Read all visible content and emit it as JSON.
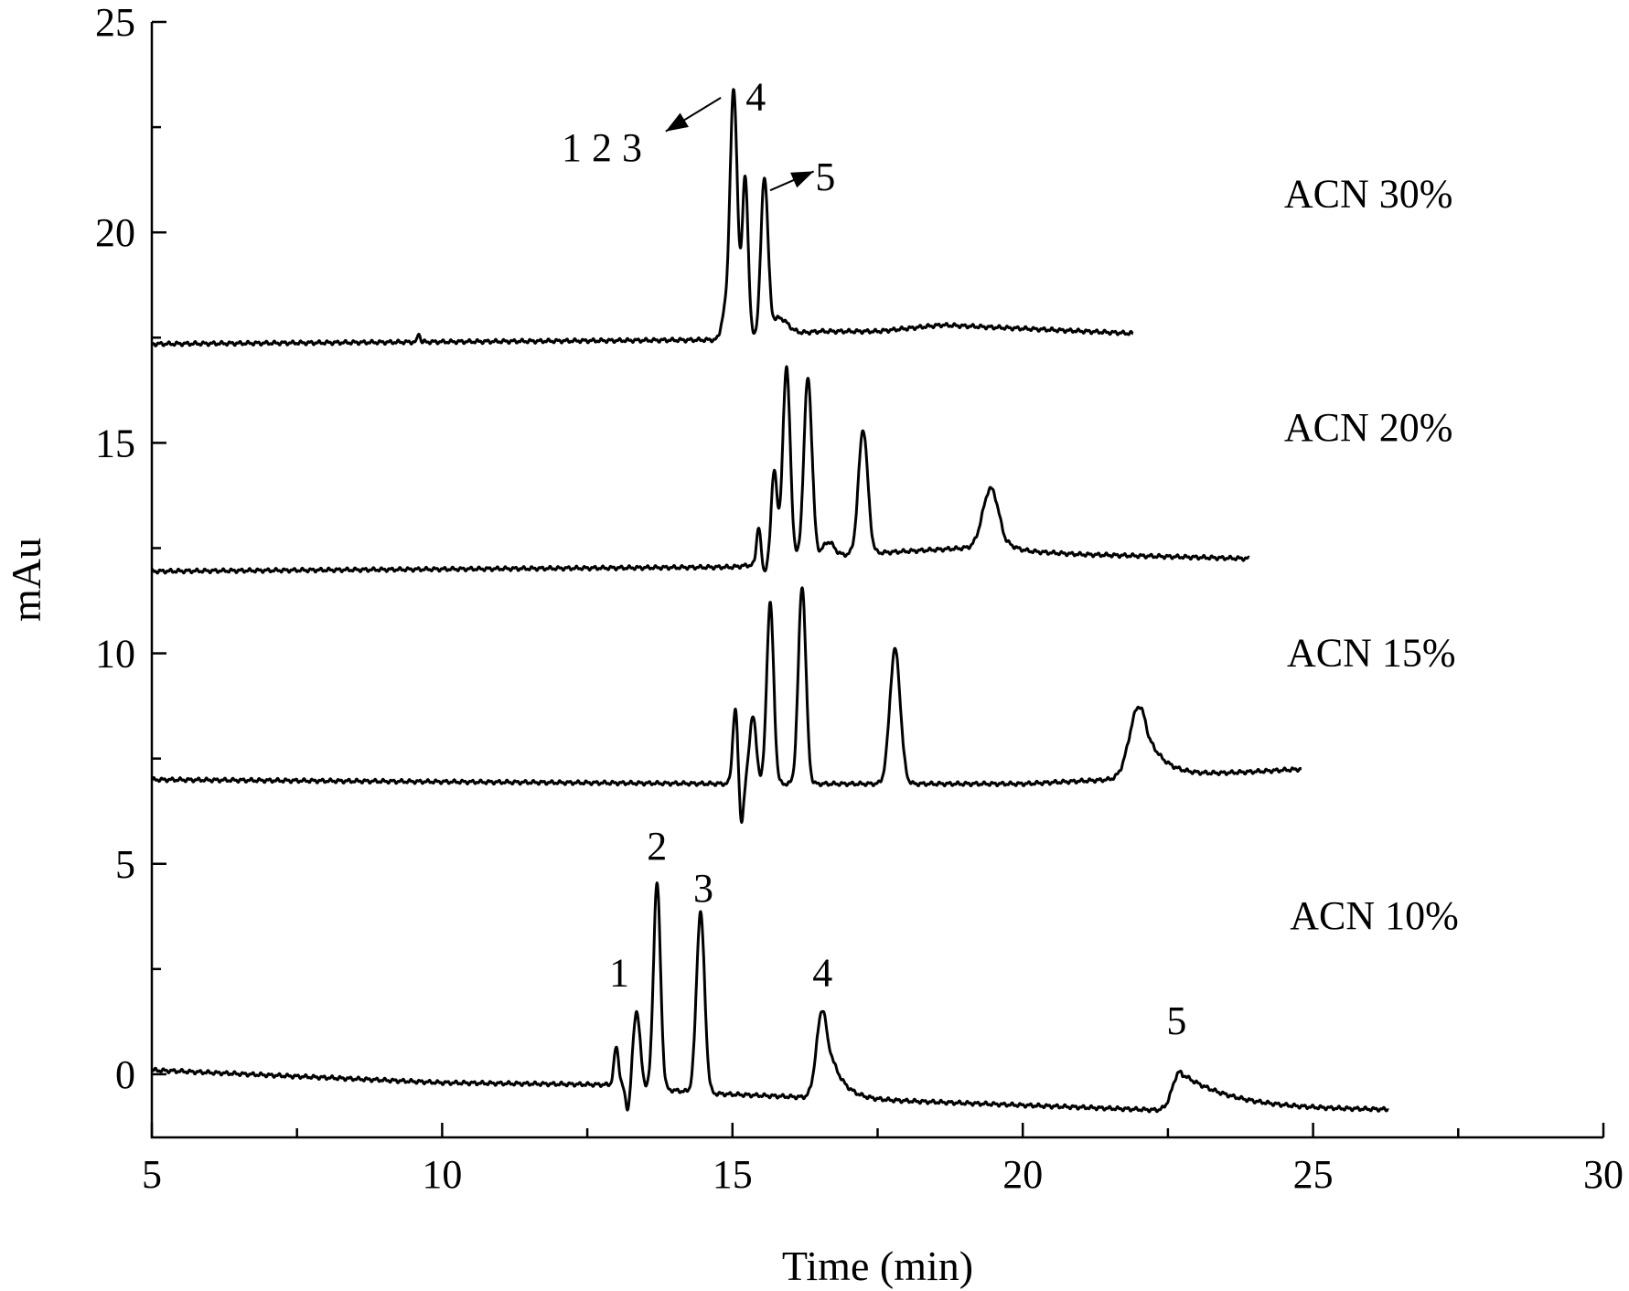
{
  "chart_data": {
    "type": "line",
    "title": "",
    "xlabel": "Time (min)",
    "ylabel": "mAu",
    "xlim": [
      5,
      30
    ],
    "ylim": [
      -1.5,
      25
    ],
    "x_ticks": [
      5,
      10,
      15,
      20,
      25,
      30
    ],
    "x_tick_labels": [
      "5",
      "10",
      "15",
      "20",
      "25",
      "30"
    ],
    "x_minor_step": 2.5,
    "y_ticks": [
      0,
      5,
      10,
      15,
      20,
      25
    ],
    "y_tick_labels": [
      "0",
      "5",
      "10",
      "15",
      "20",
      "25"
    ],
    "y_minor_step": 2.5,
    "grid": false,
    "legend": "none",
    "series": [
      {
        "name": "ACN 10%",
        "x_end": 26.3,
        "baseline": [
          [
            5.0,
            0.1
          ],
          [
            10.0,
            -0.2
          ],
          [
            13.0,
            -0.25
          ],
          [
            14.5,
            -0.45
          ],
          [
            16.3,
            -0.55
          ],
          [
            22.3,
            -0.85
          ],
          [
            26.3,
            -0.85
          ]
        ],
        "peaks": [
          {
            "x": 13.0,
            "h": 0.9,
            "w": 0.04
          },
          {
            "x": 13.2,
            "h": -0.6,
            "w": 0.04
          },
          {
            "x": 13.35,
            "h": 1.8,
            "w": 0.06
          },
          {
            "x": 13.7,
            "h": 4.9,
            "w": 0.06
          },
          {
            "x": 14.45,
            "h": 4.3,
            "w": 0.07
          },
          {
            "x": 16.55,
            "h": 2.1,
            "w": 0.1,
            "tail": 0.22
          },
          {
            "x": 22.7,
            "h": 0.9,
            "w": 0.12,
            "tail": 0.9
          }
        ]
      },
      {
        "name": "ACN 15%",
        "x_end": 24.8,
        "baseline": [
          [
            5.0,
            7.0
          ],
          [
            10.0,
            6.95
          ],
          [
            15.0,
            6.9
          ],
          [
            20.0,
            6.9
          ],
          [
            21.5,
            7.0
          ],
          [
            24.8,
            7.25
          ]
        ],
        "peaks": [
          {
            "x": 15.05,
            "h": 1.8,
            "w": 0.045
          },
          {
            "x": 15.15,
            "h": -1.0,
            "w": 0.04
          },
          {
            "x": 15.35,
            "h": 1.6,
            "w": 0.06
          },
          {
            "x": 15.65,
            "h": 4.3,
            "w": 0.06
          },
          {
            "x": 16.2,
            "h": 4.7,
            "w": 0.065
          },
          {
            "x": 17.8,
            "h": 3.2,
            "w": 0.09
          },
          {
            "x": 22.0,
            "h": 1.7,
            "w": 0.16,
            "tail": 0.3
          }
        ]
      },
      {
        "name": "ACN 20%",
        "x_end": 23.9,
        "baseline": [
          [
            5.0,
            11.95
          ],
          [
            15.0,
            12.05
          ],
          [
            17.0,
            12.35
          ],
          [
            19.0,
            12.5
          ],
          [
            21.0,
            12.35
          ],
          [
            23.9,
            12.25
          ]
        ],
        "peaks": [
          {
            "x": 15.45,
            "h": 0.9,
            "w": 0.035
          },
          {
            "x": 15.55,
            "h": -0.2,
            "w": 0.03
          },
          {
            "x": 15.72,
            "h": 2.2,
            "w": 0.05
          },
          {
            "x": 15.93,
            "h": 4.6,
            "w": 0.065
          },
          {
            "x": 16.3,
            "h": 4.3,
            "w": 0.07
          },
          {
            "x": 16.65,
            "h": 0.35,
            "w": 0.1
          },
          {
            "x": 17.25,
            "h": 2.95,
            "w": 0.08
          },
          {
            "x": 19.45,
            "h": 1.45,
            "w": 0.14,
            "tail": 0.15
          }
        ]
      },
      {
        "name": "ACN 30%",
        "x_end": 21.9,
        "baseline": [
          [
            5.0,
            17.35
          ],
          [
            14.8,
            17.45
          ],
          [
            16.5,
            17.65
          ],
          [
            17.5,
            17.65
          ],
          [
            18.6,
            17.8
          ],
          [
            21.9,
            17.6
          ]
        ],
        "peaks": [
          {
            "x": 9.6,
            "h": 0.22,
            "w": 0.02
          },
          {
            "x": 14.85,
            "h": 0.5,
            "w": 0.05
          },
          {
            "x": 15.02,
            "h": 5.9,
            "w": 0.065
          },
          {
            "x": 15.22,
            "h": 3.8,
            "w": 0.05
          },
          {
            "x": 15.55,
            "h": 3.7,
            "w": 0.06
          },
          {
            "x": 15.8,
            "h": 0.4,
            "w": 0.15
          }
        ]
      }
    ],
    "annotations": [
      {
        "text": "ACN 30%",
        "x": 24.5,
        "y": 20.6
      },
      {
        "text": "ACN 20%",
        "x": 24.5,
        "y": 15.05
      },
      {
        "text": "ACN 15%",
        "x": 24.55,
        "y": 9.7
      },
      {
        "text": "ACN 10%",
        "x": 24.6,
        "y": 3.45
      },
      {
        "text": "1",
        "x": 13.05,
        "y": 2.1
      },
      {
        "text": "2",
        "x": 13.7,
        "y": 5.1
      },
      {
        "text": "3",
        "x": 14.5,
        "y": 4.1
      },
      {
        "text": "4",
        "x": 16.55,
        "y": 2.1
      },
      {
        "text": "5",
        "x": 22.65,
        "y": 0.95
      },
      {
        "text": "1 2 3",
        "x": 12.75,
        "y": 21.7
      },
      {
        "text": "4",
        "x": 15.4,
        "y": 22.9
      },
      {
        "text": "5",
        "x": 16.6,
        "y": 21.0
      }
    ],
    "arrows": [
      {
        "from": [
          14.8,
          23.2
        ],
        "to": [
          13.85,
          22.4
        ]
      },
      {
        "from": [
          15.65,
          21.0
        ],
        "to": [
          16.4,
          21.45
        ]
      }
    ]
  }
}
